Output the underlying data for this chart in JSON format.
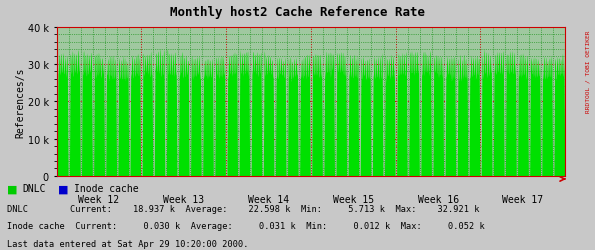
{
  "title": "Monthly host2 Cache Reference Rate",
  "ylabel": "References/s",
  "ylim": [
    0,
    40000
  ],
  "ytick_labels": [
    "0",
    "10 k",
    "20 k",
    "30 k",
    "40 k"
  ],
  "x_week_labels": [
    "Week 12",
    "Week 13",
    "Week 14",
    "Week 15",
    "Week 16",
    "Week 17"
  ],
  "bg_color": "#c8c8c8",
  "plot_bg_color": "#a0c8a0",
  "grid_color_major": "#cc0000",
  "grid_color_minor": "#008800",
  "fill_color": "#00e000",
  "title_color": "#000000",
  "tick_label_color": "#000000",
  "legend_dnlc_color": "#00cc00",
  "legend_inode_color": "#0000cc",
  "legend_line1": "DNLC        Current:    18.937 k  Average:    22.598 k  Min:     5.713 k  Max:    32.921 k",
  "legend_line2": "Inode cache  Current:     0.030 k  Average:     0.031 k  Min:     0.012 k  Max:     0.052 k",
  "footer": "Last data entered at Sat Apr 29 10:20:00 2000.",
  "sidebar_text": "RRDTOOL / TOBI OETIKER",
  "num_weeks": 6,
  "spine_color": "#cc0000",
  "arrow_color": "#cc0000"
}
